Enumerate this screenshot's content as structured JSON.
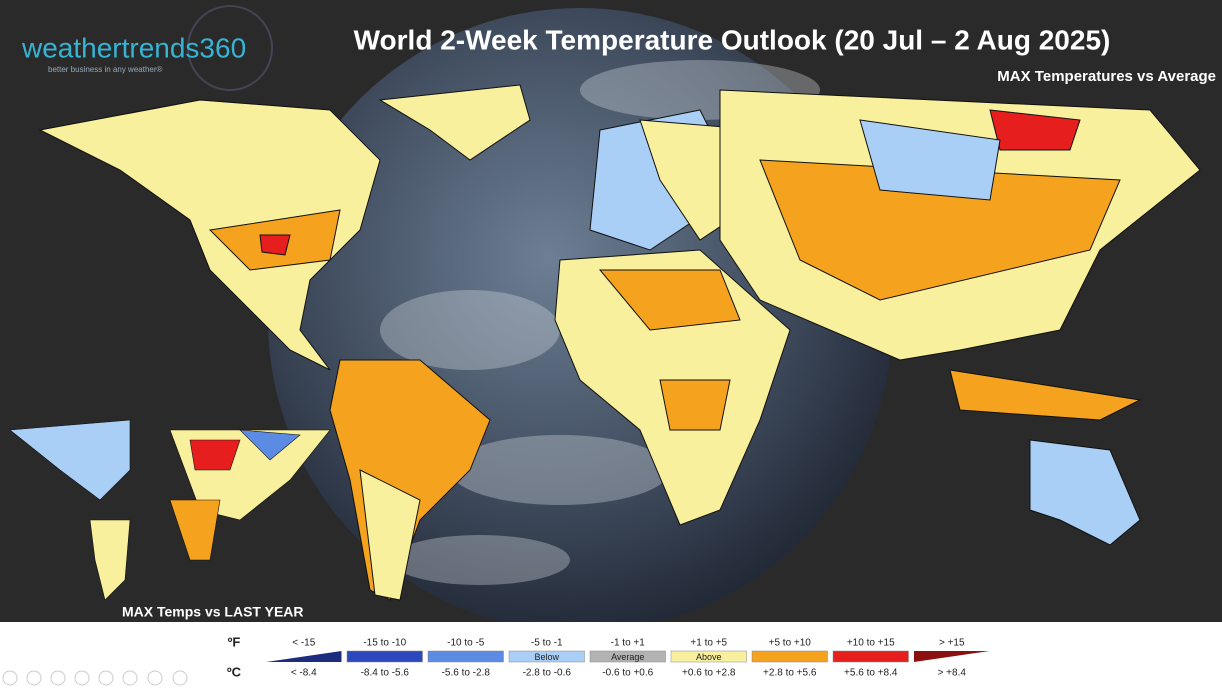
{
  "logo": {
    "name": "weathertrends360",
    "tagline": "better business in any weather®"
  },
  "title": "World 2-Week Temperature Outlook (20 Jul – 2 Aug 2025)",
  "subtitle": "MAX Temperatures vs Average",
  "inset_label": "MAX Temps vs LAST YEAR",
  "legend": {
    "f_unit": "ºF",
    "c_unit": "ºC",
    "bins": [
      {
        "f": "< -15",
        "c": "< -8.4",
        "color": "#1c2d80"
      },
      {
        "f": "-15 to -10",
        "c": "-8.4 to -5.6",
        "color": "#2c48bd"
      },
      {
        "f": "-10 to -5",
        "c": "-5.6 to -2.8",
        "color": "#5b8be2"
      },
      {
        "f": "-5 to -1",
        "c": "-2.8 to -0.6",
        "color": "#a9cff6",
        "name": "Below"
      },
      {
        "f": "-1 to +1",
        "c": "-0.6 to +0.6",
        "color": "#b3b3b3",
        "name": "Average"
      },
      {
        "f": "+1 to +5",
        "c": "+0.6 to +2.8",
        "color": "#f8f09c",
        "name": "Above"
      },
      {
        "f": "+5 to +10",
        "c": "+2.8 to +5.6",
        "color": "#f5a21e",
        "name": null
      },
      {
        "f": "+10 to +15",
        "c": "+5.6 to +8.4",
        "color": "#e61e1e"
      },
      {
        "f": "> +15",
        "c": "> +8.4",
        "color": "#8c1010"
      }
    ]
  }
}
